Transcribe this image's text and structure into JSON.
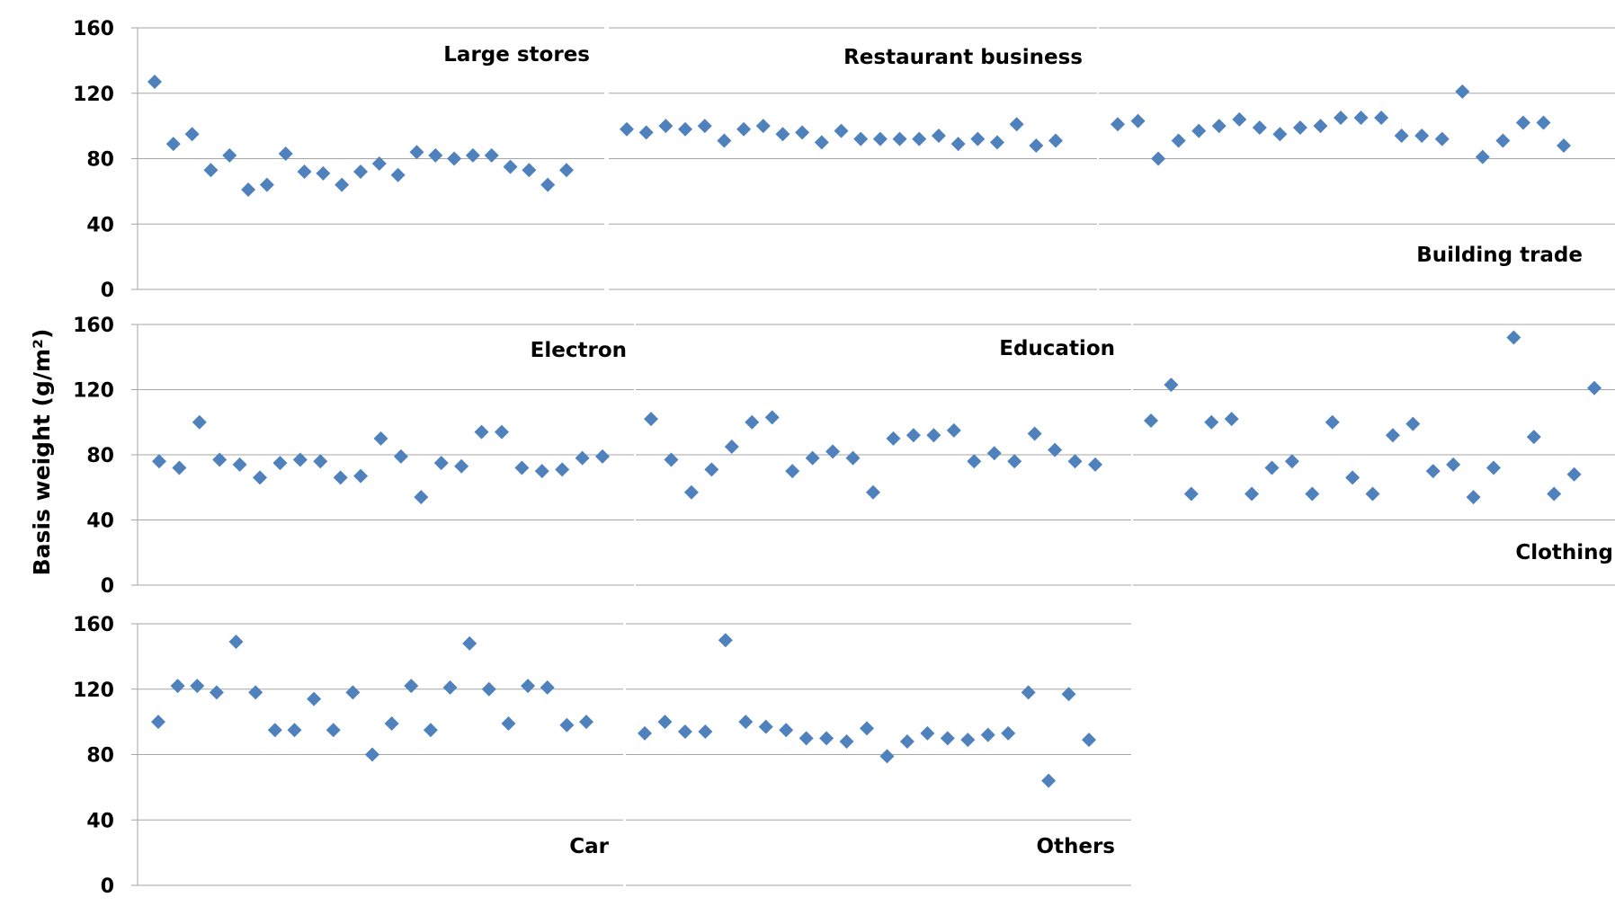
{
  "y_axis_label": "Basis weight (g/m²)",
  "chart_data": {
    "type": "scatter",
    "ylabel": "Basis weight (g/m²)",
    "ylim": [
      0,
      160
    ],
    "yticks": [
      0,
      40,
      80,
      120,
      160
    ],
    "grid": true,
    "marker": "diamond",
    "marker_color": "#4f81bd",
    "gridline_color": "#a6a6a6",
    "panels": [
      {
        "name": "Large stores",
        "values": [
          127,
          89,
          95,
          73,
          82,
          61,
          64,
          83,
          72,
          71,
          64,
          72,
          77,
          70,
          84,
          82,
          80,
          82,
          82,
          75,
          73,
          64,
          73
        ]
      },
      {
        "name": "Restaurant business",
        "values": [
          98,
          96,
          100,
          98,
          100,
          91,
          98,
          100,
          95,
          96,
          90,
          97,
          92,
          92,
          92,
          92,
          94,
          89,
          92,
          90,
          101,
          88,
          91
        ]
      },
      {
        "name": "Building trade",
        "values": [
          101,
          103,
          80,
          91,
          97,
          100,
          104,
          99,
          95,
          99,
          100,
          105,
          105,
          105,
          94,
          94,
          92,
          121,
          81,
          91,
          102,
          102,
          88
        ]
      },
      {
        "name": "Electron",
        "values": [
          76,
          72,
          100,
          77,
          74,
          66,
          75,
          77,
          76,
          66,
          67,
          90,
          79,
          54,
          75,
          73,
          94,
          94,
          72,
          70,
          71,
          78,
          79
        ]
      },
      {
        "name": "Education",
        "values": [
          102,
          77,
          57,
          71,
          85,
          100,
          103,
          70,
          78,
          82,
          78,
          57,
          90,
          92,
          92,
          95,
          76,
          81,
          76,
          93,
          83,
          76,
          74
        ]
      },
      {
        "name": "Clothing",
        "values": [
          101,
          123,
          56,
          100,
          102,
          56,
          72,
          76,
          56,
          100,
          66,
          56,
          92,
          99,
          70,
          74,
          54,
          72,
          152,
          91,
          56,
          68,
          121
        ]
      },
      {
        "name": "Car",
        "values": [
          100,
          122,
          122,
          118,
          149,
          118,
          95,
          95,
          114,
          95,
          118,
          80,
          99,
          122,
          95,
          121,
          148,
          120,
          99,
          122,
          121,
          98,
          100
        ]
      },
      {
        "name": "Others",
        "values": [
          93,
          100,
          94,
          94,
          150,
          100,
          97,
          95,
          90,
          90,
          88,
          96,
          79,
          88,
          93,
          90,
          89,
          92,
          93,
          118,
          64,
          117,
          89
        ]
      }
    ]
  }
}
